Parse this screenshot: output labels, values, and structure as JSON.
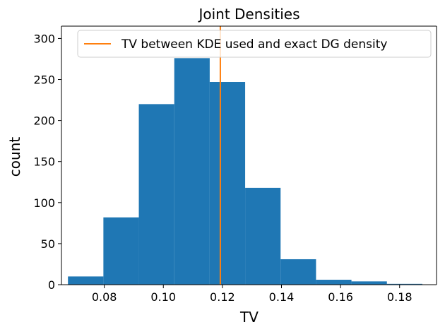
{
  "chart_data": {
    "type": "bar",
    "title": "Joint Densities",
    "xlabel": "TV",
    "ylabel": "count",
    "xlim": [
      0.0655,
      0.1925
    ],
    "ylim": [
      0,
      315
    ],
    "xticks": [
      0.08,
      0.1,
      0.12,
      0.14,
      0.16,
      0.18
    ],
    "yticks": [
      0,
      50,
      100,
      150,
      200,
      250,
      300
    ],
    "bin_edges": [
      0.0677,
      0.0797,
      0.0917,
      0.1037,
      0.1157,
      0.1277,
      0.1397,
      0.1517,
      0.1637,
      0.1757,
      0.1877
    ],
    "counts": [
      10,
      82,
      220,
      276,
      247,
      118,
      31,
      6,
      4,
      1
    ],
    "bar_color": "#1f77b4",
    "vline": {
      "x": 0.1193,
      "color": "#ff7f0e",
      "label": "TV between KDE used and exact DG density"
    },
    "legend_position": "top-right",
    "grid": false
  }
}
